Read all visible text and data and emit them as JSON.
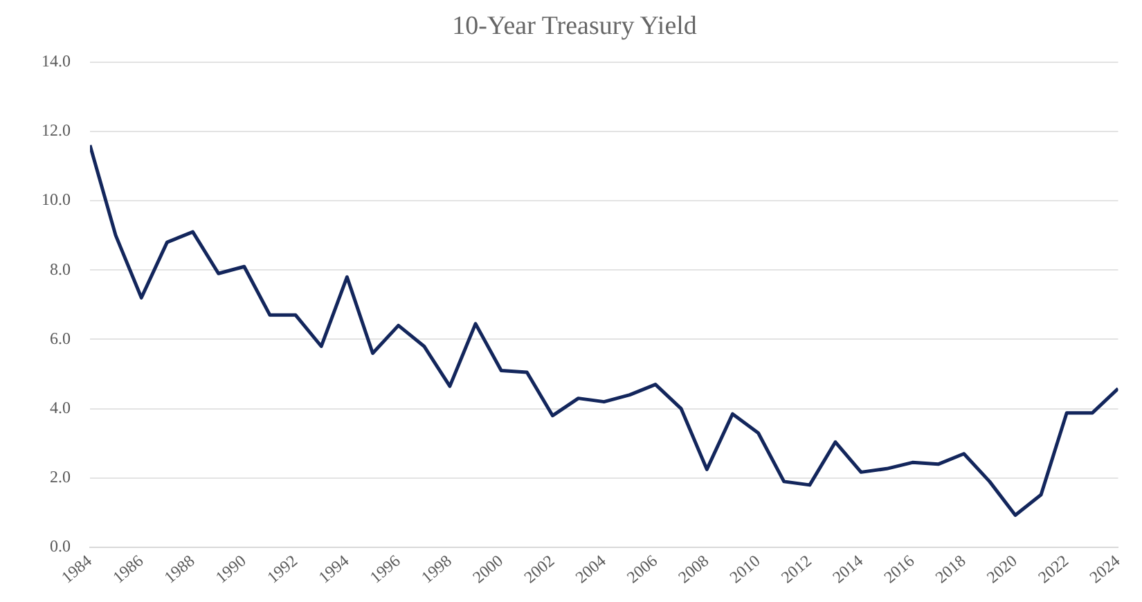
{
  "chart_data": {
    "type": "line",
    "title": "10-Year Treasury Yield",
    "x": [
      1984,
      1985,
      1986,
      1987,
      1988,
      1989,
      1990,
      1991,
      1992,
      1993,
      1994,
      1995,
      1996,
      1997,
      1998,
      1999,
      2000,
      2001,
      2002,
      2003,
      2004,
      2005,
      2006,
      2007,
      2008,
      2009,
      2010,
      2011,
      2012,
      2013,
      2014,
      2015,
      2016,
      2017,
      2018,
      2019,
      2020,
      2021,
      2022,
      2023,
      2024
    ],
    "series": [
      {
        "color": "#13265c",
        "values": [
          11.6,
          9.0,
          7.2,
          8.8,
          9.1,
          7.9,
          8.1,
          6.7,
          6.7,
          5.8,
          7.8,
          5.6,
          6.4,
          5.8,
          4.65,
          6.45,
          5.1,
          5.05,
          3.8,
          4.3,
          4.2,
          4.4,
          4.7,
          4.0,
          2.25,
          3.85,
          3.3,
          1.9,
          1.8,
          3.04,
          2.17,
          2.27,
          2.45,
          2.4,
          2.7,
          1.9,
          0.93,
          1.52,
          3.88,
          3.88,
          4.58
        ]
      }
    ],
    "xlim": [
      1984,
      2024
    ],
    "xticks": [
      1984,
      1986,
      1988,
      1990,
      1992,
      1994,
      1996,
      1998,
      2000,
      2002,
      2004,
      2006,
      2008,
      2010,
      2012,
      2014,
      2016,
      2018,
      2020,
      2022,
      2024
    ],
    "ylim": [
      0,
      14
    ],
    "yticks": [
      {
        "value": 0,
        "label": "0.0"
      },
      {
        "value": 2,
        "label": "2.0"
      },
      {
        "value": 4,
        "label": "4.0"
      },
      {
        "value": 6,
        "label": "6.0"
      },
      {
        "value": 8,
        "label": "8.0"
      },
      {
        "value": 10,
        "label": "10.0"
      },
      {
        "value": 12,
        "label": "12.0"
      },
      {
        "value": 14,
        "label": "14.0"
      }
    ],
    "grid": "y",
    "legend": false,
    "marker": "none",
    "line_style": "solid"
  }
}
